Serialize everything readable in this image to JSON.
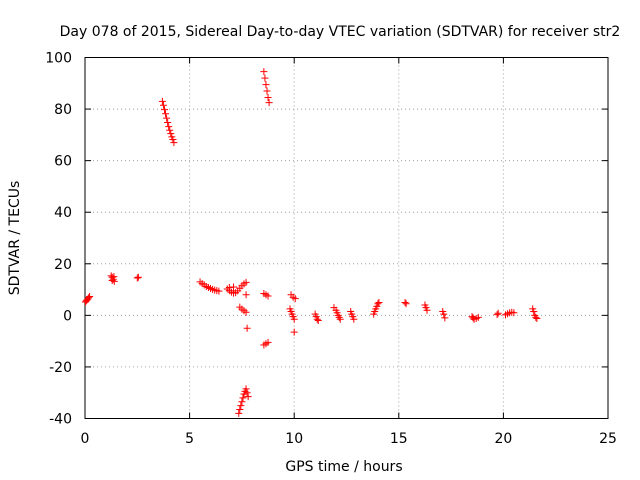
{
  "chart_data": {
    "type": "scatter",
    "title": "Day 078 of 2015, Sidereal Day-to-day VTEC variation (SDTVAR) for receiver str2",
    "xlabel": "GPS time / hours",
    "ylabel": "SDTVAR / TECUs",
    "xlim": [
      0,
      25
    ],
    "ylim": [
      -40,
      100
    ],
    "xticks": [
      0,
      5,
      10,
      15,
      20,
      25
    ],
    "yticks": [
      -40,
      -20,
      0,
      20,
      40,
      60,
      80,
      100
    ],
    "xtick_labels": [
      "0",
      "5",
      "10",
      "15",
      "20",
      "25"
    ],
    "ytick_labels": [
      "-40",
      "-20",
      "0",
      "20",
      "40",
      "60",
      "80",
      "100"
    ],
    "grid": true,
    "marker": "plus",
    "color": "#ff0000",
    "series": [
      {
        "name": "SDTVAR",
        "points": [
          [
            0.02,
            5.2
          ],
          [
            0.06,
            5.6
          ],
          [
            0.1,
            6.0
          ],
          [
            0.14,
            6.4
          ],
          [
            0.18,
            6.9
          ],
          [
            0.22,
            7.3
          ],
          [
            1.25,
            15.3
          ],
          [
            1.3,
            14.8
          ],
          [
            1.35,
            14.0
          ],
          [
            1.4,
            13.2
          ],
          [
            1.3,
            13.5
          ],
          [
            1.38,
            15.0
          ],
          [
            2.5,
            14.5
          ],
          [
            2.55,
            14.8
          ],
          [
            3.7,
            83.0
          ],
          [
            3.75,
            81.5
          ],
          [
            3.8,
            79.8
          ],
          [
            3.85,
            78.2
          ],
          [
            3.9,
            76.5
          ],
          [
            3.95,
            74.8
          ],
          [
            4.0,
            73.2
          ],
          [
            4.05,
            71.8
          ],
          [
            4.1,
            70.5
          ],
          [
            4.15,
            69.2
          ],
          [
            4.2,
            68.2
          ],
          [
            4.25,
            67.0
          ],
          [
            5.5,
            13.0
          ],
          [
            5.6,
            12.3
          ],
          [
            5.7,
            11.8
          ],
          [
            5.8,
            11.2
          ],
          [
            5.9,
            10.8
          ],
          [
            6.0,
            10.4
          ],
          [
            6.1,
            10.1
          ],
          [
            6.2,
            9.8
          ],
          [
            6.3,
            9.6
          ],
          [
            6.4,
            9.4
          ],
          [
            6.8,
            10.2
          ],
          [
            6.9,
            9.6
          ],
          [
            7.0,
            9.0
          ],
          [
            7.1,
            8.6
          ],
          [
            7.2,
            8.8
          ],
          [
            7.3,
            9.5
          ],
          [
            7.4,
            10.5
          ],
          [
            7.5,
            11.5
          ],
          [
            7.6,
            12.2
          ],
          [
            7.7,
            12.8
          ],
          [
            6.9,
            10.8
          ],
          [
            7.1,
            11.0
          ],
          [
            7.4,
            3.2
          ],
          [
            7.5,
            2.4
          ],
          [
            7.6,
            1.8
          ],
          [
            7.7,
            1.2
          ],
          [
            7.7,
            8.0
          ],
          [
            7.75,
            -5.0
          ],
          [
            7.35,
            -38.0
          ],
          [
            7.4,
            -36.5
          ],
          [
            7.45,
            -35.0
          ],
          [
            7.5,
            -33.5
          ],
          [
            7.55,
            -32.0
          ],
          [
            7.6,
            -30.5
          ],
          [
            7.65,
            -29.5
          ],
          [
            7.7,
            -28.5
          ],
          [
            7.75,
            -30.0
          ],
          [
            7.8,
            -31.5
          ],
          [
            8.55,
            94.5
          ],
          [
            8.6,
            92.0
          ],
          [
            8.65,
            89.5
          ],
          [
            8.7,
            87.0
          ],
          [
            8.75,
            84.5
          ],
          [
            8.8,
            82.5
          ],
          [
            8.55,
            8.5
          ],
          [
            8.65,
            8.0
          ],
          [
            8.75,
            7.5
          ],
          [
            8.55,
            -11.5
          ],
          [
            8.65,
            -11.0
          ],
          [
            8.75,
            -10.5
          ],
          [
            9.8,
            2.5
          ],
          [
            9.85,
            1.5
          ],
          [
            9.9,
            0.5
          ],
          [
            9.95,
            -0.5
          ],
          [
            10.0,
            -1.5
          ],
          [
            9.85,
            8.0
          ],
          [
            9.95,
            7.0
          ],
          [
            10.05,
            6.5
          ],
          [
            10.0,
            -6.5
          ],
          [
            11.0,
            0.5
          ],
          [
            11.05,
            -0.5
          ],
          [
            11.1,
            -1.5
          ],
          [
            11.15,
            -2.0
          ],
          [
            11.9,
            3.0
          ],
          [
            12.0,
            2.0
          ],
          [
            12.05,
            1.0
          ],
          [
            12.1,
            0.0
          ],
          [
            12.15,
            -0.8
          ],
          [
            12.2,
            -1.5
          ],
          [
            12.7,
            1.5
          ],
          [
            12.75,
            0.5
          ],
          [
            12.8,
            -0.5
          ],
          [
            12.85,
            -1.5
          ],
          [
            13.8,
            0.5
          ],
          [
            13.85,
            1.5
          ],
          [
            13.9,
            2.5
          ],
          [
            13.95,
            3.5
          ],
          [
            14.0,
            4.5
          ],
          [
            14.05,
            5.0
          ],
          [
            15.3,
            5.0
          ],
          [
            15.35,
            4.5
          ],
          [
            16.25,
            4.0
          ],
          [
            16.3,
            3.0
          ],
          [
            16.35,
            2.0
          ],
          [
            17.1,
            1.5
          ],
          [
            17.15,
            0.5
          ],
          [
            17.2,
            -1.0
          ],
          [
            18.5,
            -0.5
          ],
          [
            18.55,
            -1.0
          ],
          [
            18.6,
            -1.5
          ],
          [
            18.7,
            -1.2
          ],
          [
            18.8,
            -0.8
          ],
          [
            19.7,
            0.3
          ],
          [
            19.75,
            0.8
          ],
          [
            20.1,
            0.2
          ],
          [
            20.2,
            0.6
          ],
          [
            20.3,
            1.0
          ],
          [
            20.4,
            1.2
          ],
          [
            20.5,
            1.0
          ],
          [
            21.4,
            2.5
          ],
          [
            21.45,
            1.5
          ],
          [
            21.5,
            0.0
          ],
          [
            21.55,
            -0.8
          ],
          [
            21.6,
            -1.2
          ]
        ]
      }
    ]
  }
}
